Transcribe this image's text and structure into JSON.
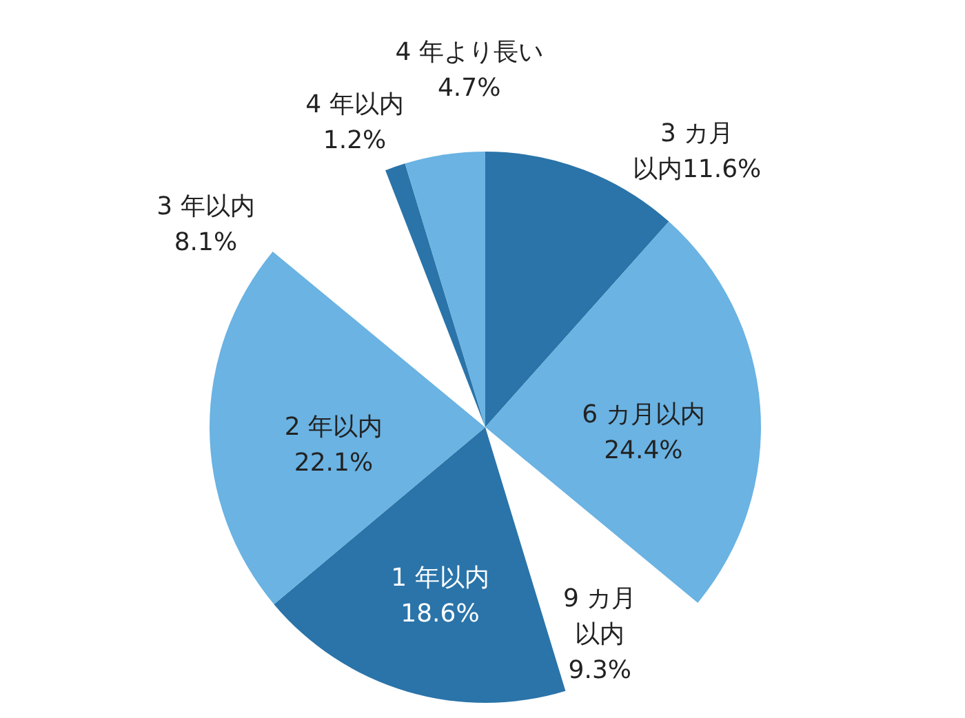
{
  "chart_data": {
    "type": "pie",
    "categories": [
      "3 カ月以内",
      "6 カ月以内",
      "9 カ月以内",
      "1 年以内",
      "2 年以内",
      "3 年以内",
      "4 年以内",
      "4 年より長い"
    ],
    "value_labels": [
      "11.6%",
      "24.4%",
      "9.3%",
      "18.6%",
      "22.1%",
      "8.1%",
      "1.2%",
      "4.7%"
    ],
    "values": [
      11.6,
      24.4,
      9.3,
      18.6,
      22.1,
      8.1,
      1.2,
      4.7
    ],
    "colors": [
      "#2a74a9",
      "#6ab3e3",
      "#ffffff",
      "#2a74a9",
      "#6ab3e3",
      "#ffffff",
      "#2a74a9",
      "#6ab3e3"
    ]
  }
}
